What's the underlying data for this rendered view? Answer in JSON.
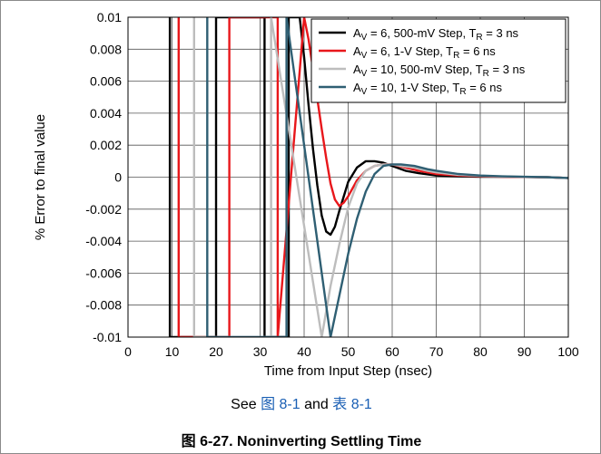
{
  "chart_data": {
    "type": "line",
    "xlabel": "Time from Input Step (nsec)",
    "ylabel": "% Error to final value",
    "xlim": [
      0,
      100
    ],
    "ylim": [
      -0.01,
      0.01
    ],
    "x_ticks": [
      "0",
      "10",
      "20",
      "30",
      "40",
      "50",
      "60",
      "70",
      "80",
      "90",
      "100"
    ],
    "y_ticks": [
      "0.01",
      "0.008",
      "0.006",
      "0.004",
      "0.002",
      "0",
      "-0.002",
      "-0.004",
      "-0.006",
      "-0.008",
      "-0.01"
    ],
    "x_tick_values": [
      0,
      10,
      20,
      30,
      40,
      50,
      60,
      70,
      80,
      90,
      100
    ],
    "y_tick_values": [
      0.01,
      0.008,
      0.006,
      0.004,
      0.002,
      0,
      -0.002,
      -0.004,
      -0.006,
      -0.008,
      -0.01
    ],
    "grid": true,
    "legend_position": "top-right",
    "series": [
      {
        "label_parts": [
          {
            "t": "A"
          },
          {
            "t": "V",
            "sub": true
          },
          {
            "t": " = 6, 500-mV Step, T"
          },
          {
            "t": "R",
            "sub": true
          },
          {
            "t": " = 3 ns"
          }
        ],
        "color": "#000000",
        "x": [
          9.5,
          9.5,
          20.0,
          20.0,
          31.0,
          31.0,
          36.5,
          36.5,
          39.0,
          40.0,
          41.0,
          42.0,
          43.0,
          44.0,
          45.0,
          46.0,
          47.0,
          48.0,
          50.0,
          52.0,
          54.0,
          56.0,
          58.0,
          60.0,
          63.0,
          66.0,
          70.0,
          75.0,
          80.0,
          85.0,
          90.0,
          95.0,
          100.0
        ],
        "y": [
          0.01,
          -0.01,
          -0.01,
          0.01,
          0.01,
          -0.01,
          -0.01,
          0.01,
          0.01,
          0.0075,
          0.0045,
          0.0018,
          -0.0005,
          -0.0024,
          -0.0034,
          -0.0036,
          -0.0031,
          -0.0021,
          -0.0003,
          0.0006,
          0.001,
          0.001,
          0.0009,
          0.0007,
          0.0004,
          0.00025,
          0.0001,
          5e-05,
          3e-05,
          2e-05,
          1e-05,
          0.0,
          -5e-05
        ]
      },
      {
        "label_parts": [
          {
            "t": "A"
          },
          {
            "t": "V",
            "sub": true
          },
          {
            "t": " = 6, 1-V Step, T"
          },
          {
            "t": "R",
            "sub": true
          },
          {
            "t": " = 6 ns"
          }
        ],
        "color": "#e8171b",
        "x": [
          11.5,
          11.5,
          23.0,
          23.0,
          34.0,
          34.0,
          40.0,
          41.0,
          42.0,
          43.0,
          44.0,
          45.0,
          46.0,
          47.0,
          48.0,
          49.0,
          50.0,
          52.0,
          54.0,
          56.0,
          58.0,
          60.0,
          63.0,
          66.0,
          70.0,
          75.0,
          80.0,
          85.0,
          90.0,
          95.0,
          100.0
        ],
        "y": [
          0.01,
          -0.01,
          -0.01,
          0.01,
          0.01,
          -0.01,
          0.01,
          0.0086,
          0.0068,
          0.0049,
          0.003,
          0.0012,
          -0.0004,
          -0.0014,
          -0.0018,
          -0.0016,
          -0.0012,
          -0.0002,
          0.0004,
          0.0007,
          0.0008,
          0.0008,
          0.0006,
          0.0004,
          0.0002,
          0.0001,
          6e-05,
          3e-05,
          1e-05,
          0.0,
          -5e-05
        ]
      },
      {
        "label_parts": [
          {
            "t": "A"
          },
          {
            "t": "V",
            "sub": true
          },
          {
            "t": " = 10, 500-mV Step, T"
          },
          {
            "t": "R",
            "sub": true
          },
          {
            "t": " = 3 ns"
          }
        ],
        "color": "#bdbdbd",
        "x": [
          15.0,
          15.0,
          32.5,
          32.5,
          44.0,
          46.0,
          48.0,
          50.0,
          52.0,
          54.0,
          56.0,
          58.0,
          60.0,
          62.0,
          65.0,
          68.0,
          70.0,
          75.0,
          80.0,
          85.0,
          90.0,
          95.0,
          100.0
        ],
        "y": [
          0.01,
          -0.01,
          -0.01,
          0.01,
          -0.01,
          -0.0068,
          -0.0042,
          -0.0019,
          -0.0004,
          0.0004,
          0.0007,
          0.0008,
          0.0008,
          0.0007,
          0.0006,
          0.0004,
          0.0003,
          0.00015,
          8e-05,
          4e-05,
          2e-05,
          0.0,
          -5e-05
        ]
      },
      {
        "label_parts": [
          {
            "t": "A"
          },
          {
            "t": "V",
            "sub": true
          },
          {
            "t": " = 10, 1-V Step, T"
          },
          {
            "t": "R",
            "sub": true
          },
          {
            "t": " = 6 ns"
          }
        ],
        "color": "#2f5f73",
        "x": [
          18.0,
          18.0,
          36.0,
          36.0,
          46.0,
          48.0,
          50.0,
          52.0,
          54.0,
          56.0,
          58.0,
          60.0,
          62.0,
          65.0,
          68.0,
          70.0,
          75.0,
          80.0,
          85.0,
          90.0,
          95.0,
          100.0
        ],
        "y": [
          0.01,
          -0.01,
          -0.01,
          0.01,
          -0.01,
          -0.0074,
          -0.0048,
          -0.0026,
          -0.0009,
          0.0002,
          0.0007,
          0.0008,
          0.0008,
          0.0007,
          0.0005,
          0.0004,
          0.0002,
          0.0001,
          5e-05,
          2e-05,
          0.0,
          -5e-05
        ]
      }
    ]
  },
  "captions": {
    "note_prefix": "See ",
    "note_link1": "图 8-1",
    "note_mid": " and ",
    "note_link2": "表 8-1",
    "figure_title": "图 6-27. Noninverting Settling Time"
  }
}
